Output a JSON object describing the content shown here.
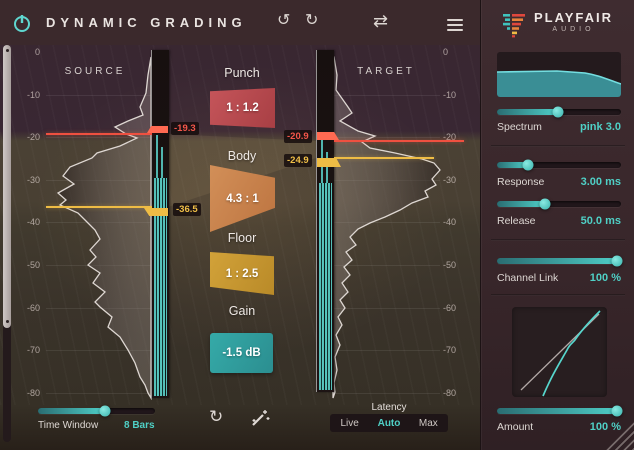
{
  "titlebar": {
    "title": "DYNAMIC GRADING"
  },
  "meters": {
    "source": {
      "label": "SOURCE",
      "high": "-19.3",
      "low": "-36.5"
    },
    "target": {
      "label": "TARGET",
      "high": "-20.9",
      "low": "-24.9"
    },
    "scale_ticks": [
      "0",
      "-10",
      "-20",
      "-30",
      "-40",
      "-50",
      "-60",
      "-70",
      "-80"
    ]
  },
  "bands": [
    {
      "name": "Punch",
      "value": "1 : 1.2"
    },
    {
      "name": "Body",
      "value": "4.3 : 1"
    },
    {
      "name": "Floor",
      "value": "1 : 2.5"
    },
    {
      "name": "Gain",
      "value": "-1.5 dB"
    }
  ],
  "footer": {
    "time_window": {
      "label": "Time Window",
      "value": "8 Bars"
    },
    "latency": {
      "label": "Latency",
      "options": [
        "Live",
        "Auto",
        "Max"
      ],
      "selected": "Auto"
    }
  },
  "sidebar": {
    "brand": {
      "name": "PLAYFAIR",
      "sub": "AUDIO"
    },
    "spectrum": {
      "label": "Spectrum",
      "value": "pink 3.0"
    },
    "response": {
      "label": "Response",
      "value": "3.00 ms"
    },
    "release": {
      "label": "Release",
      "value": "50.0 ms"
    },
    "channel_link": {
      "label": "Channel Link",
      "value": "100 %"
    },
    "amount": {
      "label": "Amount",
      "value": "100 %"
    }
  },
  "colors": {
    "accent": "#4fd0c6",
    "red": "#ef5040",
    "yellow": "#eebc45",
    "punch": "#c5555a",
    "body": "#d28f58",
    "floor": "#d2a239",
    "gain": "#35aaa8"
  }
}
